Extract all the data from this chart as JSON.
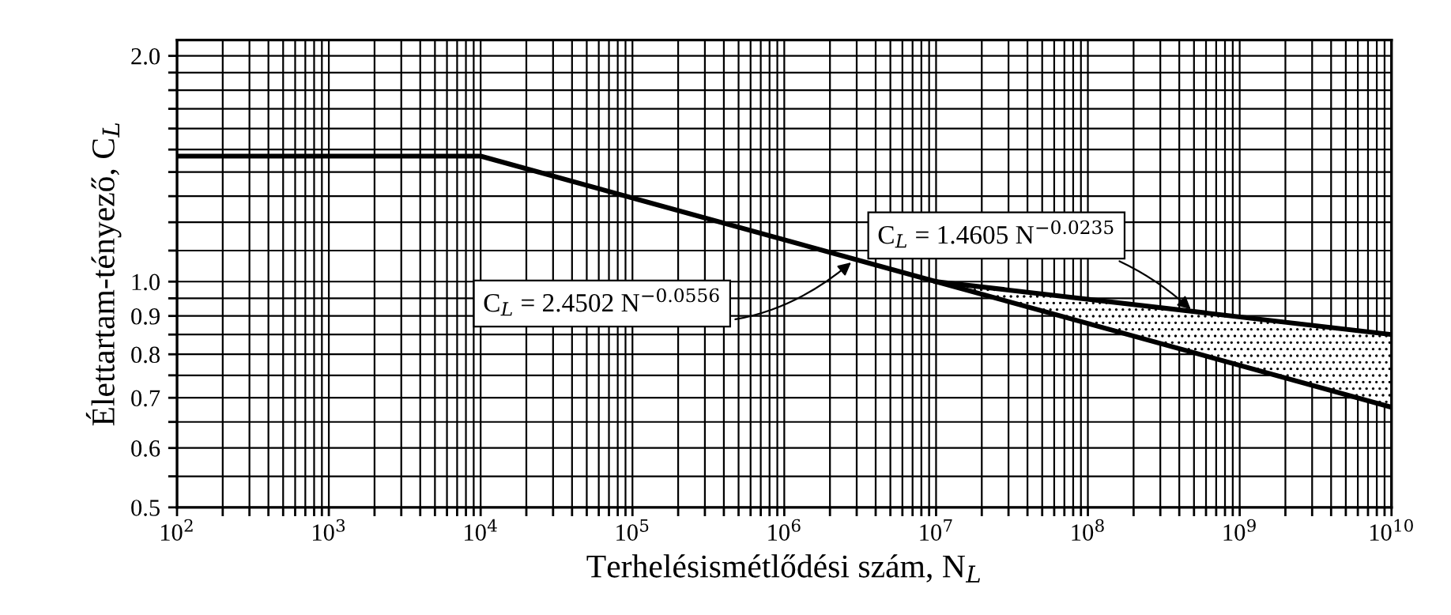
{
  "chart_data": {
    "type": "line",
    "xlabel": "Terhelésismétlődési szám, N$_{L}$",
    "ylabel": "Élettartam-tényező, C$_{L}$",
    "log": "xy",
    "grid": true,
    "marker": "none",
    "line_style": "solid",
    "xlim": [
      100,
      10000000000
    ],
    "ylim": [
      0.5,
      2.1
    ],
    "xticks": [
      {
        "value": 100,
        "label": "10$^{2}$"
      },
      {
        "value": 200,
        "label": null
      },
      {
        "value": 300,
        "label": null
      },
      {
        "value": 400,
        "label": null
      },
      {
        "value": 500,
        "label": null
      },
      {
        "value": 600,
        "label": null
      },
      {
        "value": 700,
        "label": null
      },
      {
        "value": 800,
        "label": null
      },
      {
        "value": 900,
        "label": null
      },
      {
        "value": 1000,
        "label": "10$^{3}$"
      },
      {
        "value": 2000,
        "label": null
      },
      {
        "value": 3000,
        "label": null
      },
      {
        "value": 4000,
        "label": null
      },
      {
        "value": 5000,
        "label": null
      },
      {
        "value": 6000,
        "label": null
      },
      {
        "value": 7000,
        "label": null
      },
      {
        "value": 8000,
        "label": null
      },
      {
        "value": 9000,
        "label": null
      },
      {
        "value": 10000,
        "label": "10$^{4}$"
      },
      {
        "value": 20000,
        "label": null
      },
      {
        "value": 30000,
        "label": null
      },
      {
        "value": 40000,
        "label": null
      },
      {
        "value": 50000,
        "label": null
      },
      {
        "value": 60000,
        "label": null
      },
      {
        "value": 70000,
        "label": null
      },
      {
        "value": 80000,
        "label": null
      },
      {
        "value": 90000,
        "label": null
      },
      {
        "value": 100000,
        "label": "10$^{5}$"
      },
      {
        "value": 200000,
        "label": null
      },
      {
        "value": 300000,
        "label": null
      },
      {
        "value": 400000,
        "label": null
      },
      {
        "value": 500000,
        "label": null
      },
      {
        "value": 600000,
        "label": null
      },
      {
        "value": 700000,
        "label": null
      },
      {
        "value": 800000,
        "label": null
      },
      {
        "value": 900000,
        "label": null
      },
      {
        "value": 1000000,
        "label": "10$^{6}$"
      },
      {
        "value": 2000000,
        "label": null
      },
      {
        "value": 3000000,
        "label": null
      },
      {
        "value": 4000000,
        "label": null
      },
      {
        "value": 5000000,
        "label": null
      },
      {
        "value": 6000000,
        "label": null
      },
      {
        "value": 7000000,
        "label": null
      },
      {
        "value": 8000000,
        "label": null
      },
      {
        "value": 9000000,
        "label": null
      },
      {
        "value": 10000000,
        "label": "10$^{7}$"
      },
      {
        "value": 20000000,
        "label": null
      },
      {
        "value": 30000000,
        "label": null
      },
      {
        "value": 40000000,
        "label": null
      },
      {
        "value": 50000000,
        "label": null
      },
      {
        "value": 60000000,
        "label": null
      },
      {
        "value": 70000000,
        "label": null
      },
      {
        "value": 80000000,
        "label": null
      },
      {
        "value": 90000000,
        "label": null
      },
      {
        "value": 100000000,
        "label": "10$^{8}$"
      },
      {
        "value": 200000000,
        "label": null
      },
      {
        "value": 300000000,
        "label": null
      },
      {
        "value": 400000000,
        "label": null
      },
      {
        "value": 500000000,
        "label": null
      },
      {
        "value": 600000000,
        "label": null
      },
      {
        "value": 700000000,
        "label": null
      },
      {
        "value": 800000000,
        "label": null
      },
      {
        "value": 900000000,
        "label": null
      },
      {
        "value": 1000000000,
        "label": "10$^{9}$"
      },
      {
        "value": 2000000000,
        "label": null
      },
      {
        "value": 3000000000,
        "label": null
      },
      {
        "value": 4000000000,
        "label": null
      },
      {
        "value": 5000000000,
        "label": null
      },
      {
        "value": 6000000000,
        "label": null
      },
      {
        "value": 7000000000,
        "label": null
      },
      {
        "value": 8000000000,
        "label": null
      },
      {
        "value": 9000000000,
        "label": null
      },
      {
        "value": 10000000000,
        "label": "10$^{10}$"
      }
    ],
    "yticks": [
      0.5,
      {
        "value": 0.55,
        "label": null
      },
      0.6,
      {
        "value": 0.65,
        "label": null
      },
      0.7,
      {
        "value": 0.75,
        "label": null
      },
      0.8,
      {
        "value": 0.85,
        "label": null
      },
      0.9,
      {
        "value": 0.95,
        "label": null
      },
      {
        "value": 1.0,
        "label": "1.0"
      },
      {
        "value": 1.1,
        "label": null
      },
      {
        "value": 1.2,
        "label": null
      },
      {
        "value": 1.3,
        "label": null
      },
      {
        "value": 1.4,
        "label": null
      },
      {
        "value": 1.5,
        "label": null
      },
      {
        "value": 1.6,
        "label": null
      },
      {
        "value": 1.7,
        "label": null
      },
      {
        "value": 1.8,
        "label": null
      },
      {
        "value": 1.9,
        "label": null
      },
      {
        "value": 2.0,
        "label": "2.0"
      }
    ],
    "series": [
      {
        "color": "#000000",
        "x": [
          100,
          10000,
          10000000,
          10000000000
        ],
        "values": [
          1.47,
          1.47,
          1.0,
          0.68
        ]
      },
      {
        "color": "#000000",
        "x": [
          10000000,
          10000000000
        ],
        "values": [
          1.0,
          0.85
        ],
        "lower": [
          1.0,
          0.68
        ],
        "upper": [
          1.0,
          0.85
        ]
      }
    ],
    "annotations": [
      {
        "text": "C$_{L}$ = 2.4502 N$^{−0.0556}$",
        "x": 2900000,
        "y": 1.07
      },
      {
        "text": "C$_{L}$ = 1.4605 N$^{−0.0235}$",
        "x": 500000000,
        "y": 0.91
      }
    ]
  }
}
